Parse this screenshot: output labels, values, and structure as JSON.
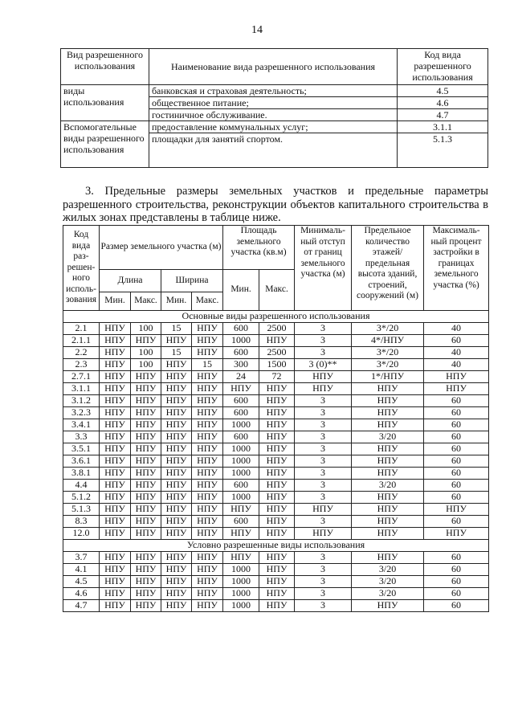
{
  "page_number": "14",
  "table1": {
    "headers": [
      "Вид разрешенного использования",
      "Наименование вида разрешенного использования",
      "Код вида разрешенного использования"
    ],
    "groups": [
      {
        "label": "виды использования",
        "rows": [
          {
            "name": "банковская и страховая деятельность;",
            "code": "4.5"
          },
          {
            "name": "общественное питание;",
            "code": "4.6"
          },
          {
            "name": "гостиничное обслуживание.",
            "code": "4.7"
          }
        ]
      },
      {
        "label": "Вспомогательные виды разрешенного использования",
        "rows": [
          {
            "name": "предоставление коммунальных услуг;",
            "code": "3.1.1"
          },
          {
            "name": "площадки для занятий спортом.",
            "code": "5.1.3"
          }
        ]
      }
    ]
  },
  "paragraph": "3. Предельные размеры земельных участков и предельные параметры разрешенного строительства, реконструкции объектов капитального строительства в жилых зонах представлены в таблице ниже.",
  "table2": {
    "headers": {
      "code": "Код вида раз-решен-ного исполь-зования",
      "size": "Размер земельного участка (м)",
      "length": "Длина",
      "width": "Ширина",
      "area": "Площадь земельного участка (кв.м)",
      "min": "Мин.",
      "max": "Макс.",
      "setback": "Минималь-ный отступ от границ земельного участка (м)",
      "floors": "Предельное количество этажей/ предельная высота зданий, строений, сооружений (м)",
      "percent": "Максималь-ный процент застройки в границах земельного участка (%)"
    },
    "sections": [
      {
        "title": "Основные виды разрешенного использования",
        "rows": [
          [
            "2.1",
            "НПУ",
            "100",
            "15",
            "НПУ",
            "600",
            "2500",
            "3",
            "3*/20",
            "40"
          ],
          [
            "2.1.1",
            "НПУ",
            "НПУ",
            "НПУ",
            "НПУ",
            "1000",
            "НПУ",
            "3",
            "4*/НПУ",
            "60"
          ],
          [
            "2.2",
            "НПУ",
            "100",
            "15",
            "НПУ",
            "600",
            "2500",
            "3",
            "3*/20",
            "40"
          ],
          [
            "2.3",
            "НПУ",
            "100",
            "НПУ",
            "15",
            "300",
            "1500",
            "3 (0)**",
            "3*/20",
            "40"
          ],
          [
            "2.7.1",
            "НПУ",
            "НПУ",
            "НПУ",
            "НПУ",
            "24",
            "72",
            "НПУ",
            "1*/НПУ",
            "НПУ"
          ],
          [
            "3.1.1",
            "НПУ",
            "НПУ",
            "НПУ",
            "НПУ",
            "НПУ",
            "НПУ",
            "НПУ",
            "НПУ",
            "НПУ"
          ],
          [
            "3.1.2",
            "НПУ",
            "НПУ",
            "НПУ",
            "НПУ",
            "600",
            "НПУ",
            "3",
            "НПУ",
            "60"
          ],
          [
            "3.2.3",
            "НПУ",
            "НПУ",
            "НПУ",
            "НПУ",
            "600",
            "НПУ",
            "3",
            "НПУ",
            "60"
          ],
          [
            "3.4.1",
            "НПУ",
            "НПУ",
            "НПУ",
            "НПУ",
            "1000",
            "НПУ",
            "3",
            "НПУ",
            "60"
          ],
          [
            "3.3",
            "НПУ",
            "НПУ",
            "НПУ",
            "НПУ",
            "600",
            "НПУ",
            "3",
            "3/20",
            "60"
          ],
          [
            "3.5.1",
            "НПУ",
            "НПУ",
            "НПУ",
            "НПУ",
            "1000",
            "НПУ",
            "3",
            "НПУ",
            "60"
          ],
          [
            "3.6.1",
            "НПУ",
            "НПУ",
            "НПУ",
            "НПУ",
            "1000",
            "НПУ",
            "3",
            "НПУ",
            "60"
          ],
          [
            "3.8.1",
            "НПУ",
            "НПУ",
            "НПУ",
            "НПУ",
            "1000",
            "НПУ",
            "3",
            "НПУ",
            "60"
          ],
          [
            "4.4",
            "НПУ",
            "НПУ",
            "НПУ",
            "НПУ",
            "600",
            "НПУ",
            "3",
            "3/20",
            "60"
          ],
          [
            "5.1.2",
            "НПУ",
            "НПУ",
            "НПУ",
            "НПУ",
            "1000",
            "НПУ",
            "3",
            "НПУ",
            "60"
          ],
          [
            "5.1.3",
            "НПУ",
            "НПУ",
            "НПУ",
            "НПУ",
            "НПУ",
            "НПУ",
            "НПУ",
            "НПУ",
            "НПУ"
          ],
          [
            "8.3",
            "НПУ",
            "НПУ",
            "НПУ",
            "НПУ",
            "600",
            "НПУ",
            "3",
            "НПУ",
            "60"
          ],
          [
            "12.0",
            "НПУ",
            "НПУ",
            "НПУ",
            "НПУ",
            "НПУ",
            "НПУ",
            "НПУ",
            "НПУ",
            "НПУ"
          ]
        ]
      },
      {
        "title": "Условно разрешенные виды использования",
        "rows": [
          [
            "3.7",
            "НПУ",
            "НПУ",
            "НПУ",
            "НПУ",
            "НПУ",
            "НПУ",
            "3",
            "НПУ",
            "60"
          ],
          [
            "4.1",
            "НПУ",
            "НПУ",
            "НПУ",
            "НПУ",
            "1000",
            "НПУ",
            "3",
            "3/20",
            "60"
          ],
          [
            "4.5",
            "НПУ",
            "НПУ",
            "НПУ",
            "НПУ",
            "1000",
            "НПУ",
            "3",
            "3/20",
            "60"
          ],
          [
            "4.6",
            "НПУ",
            "НПУ",
            "НПУ",
            "НПУ",
            "1000",
            "НПУ",
            "3",
            "3/20",
            "60"
          ],
          [
            "4.7",
            "НПУ",
            "НПУ",
            "НПУ",
            "НПУ",
            "1000",
            "НПУ",
            "3",
            "НПУ",
            "60"
          ]
        ]
      }
    ]
  }
}
